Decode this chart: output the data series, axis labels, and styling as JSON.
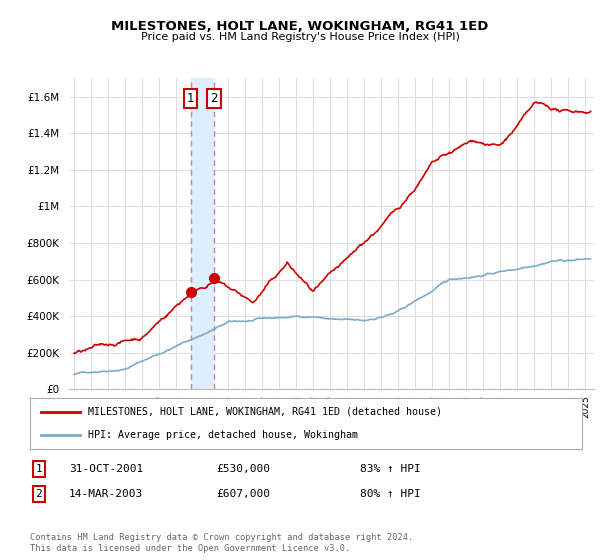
{
  "title": "MILESTONES, HOLT LANE, WOKINGHAM, RG41 1ED",
  "subtitle": "Price paid vs. HM Land Registry's House Price Index (HPI)",
  "sale1_date": "31-OCT-2001",
  "sale1_price": 530000,
  "sale1_hpi": "83% ↑ HPI",
  "sale2_date": "14-MAR-2003",
  "sale2_price": 607000,
  "sale2_hpi": "80% ↑ HPI",
  "legend_red": "MILESTONES, HOLT LANE, WOKINGHAM, RG41 1ED (detached house)",
  "legend_blue": "HPI: Average price, detached house, Wokingham",
  "footer": "Contains HM Land Registry data © Crown copyright and database right 2024.\nThis data is licensed under the Open Government Licence v3.0.",
  "red_color": "#cc0000",
  "blue_color": "#7aabcc",
  "vband_color": "#ddeeff",
  "vline_color": "#cc8888",
  "ylim": [
    0,
    1700000
  ],
  "yticks": [
    0,
    200000,
    400000,
    600000,
    800000,
    1000000,
    1200000,
    1400000,
    1600000
  ],
  "ytick_labels": [
    "£0",
    "£200K",
    "£400K",
    "£600K",
    "£800K",
    "£1M",
    "£1.2M",
    "£1.4M",
    "£1.6M"
  ],
  "xmin": 1994.7,
  "xmax": 2025.5,
  "sale1_x": 2001.83,
  "sale2_x": 2003.2,
  "sale1_y": 530000,
  "sale2_y": 607000,
  "bg_color": "#ffffff",
  "grid_color": "#dddddd"
}
